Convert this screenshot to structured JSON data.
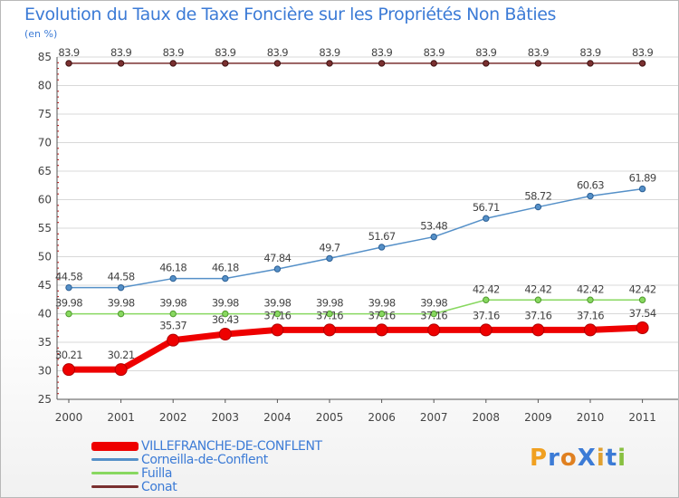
{
  "chart_data": {
    "type": "line",
    "title": "Evolution du Taux de Taxe Foncière sur les Propriétés Non Bâties",
    "ylabel": "(en %)",
    "xlabel": "",
    "ylim": [
      25,
      85
    ],
    "yticks": [
      25,
      30,
      35,
      40,
      45,
      50,
      55,
      60,
      65,
      70,
      75,
      80,
      85
    ],
    "grid": "horizontal",
    "categories": [
      "2000",
      "2001",
      "2002",
      "2003",
      "2004",
      "2005",
      "2006",
      "2007",
      "2008",
      "2009",
      "2010",
      "2011"
    ],
    "series": [
      {
        "name": "VILLEFRANCHE-DE-CONFLENT",
        "color": "#ee0000",
        "values": [
          30.21,
          30.21,
          35.37,
          36.43,
          37.16,
          37.16,
          37.16,
          37.16,
          37.16,
          37.16,
          37.16,
          37.54
        ],
        "labels": [
          "30.21",
          "30.21",
          "35.37",
          "36.43",
          "37.16",
          "37.16",
          "37.16",
          "37.16",
          "37.16",
          "37.16",
          "37.16",
          "37.54"
        ]
      },
      {
        "name": "Corneilla-de-Conflent",
        "color": "#5590c8",
        "values": [
          44.58,
          44.58,
          46.18,
          46.18,
          47.84,
          49.7,
          51.67,
          53.48,
          56.71,
          58.72,
          60.63,
          61.89
        ],
        "labels": [
          "44.58",
          "44.58",
          "46.18",
          "46.18",
          "47.84",
          "49.7",
          "51.67",
          "53.48",
          "56.71",
          "58.72",
          "60.63",
          "61.89"
        ]
      },
      {
        "name": "Fuilla",
        "color": "#88d860",
        "values": [
          39.98,
          39.98,
          39.98,
          39.98,
          39.98,
          39.98,
          39.98,
          39.98,
          42.42,
          42.42,
          42.42,
          42.42
        ],
        "labels": [
          "39.98",
          "39.98",
          "39.98",
          "39.98",
          "39.98",
          "39.98",
          "39.98",
          "39.98",
          "42.42",
          "42.42",
          "42.42",
          "42.42"
        ]
      },
      {
        "name": "Conat",
        "color": "#7a3030",
        "values": [
          83.9,
          83.9,
          83.9,
          83.9,
          83.9,
          83.9,
          83.9,
          83.9,
          83.9,
          83.9,
          83.9,
          83.9
        ],
        "labels": [
          "83.9",
          "83.9",
          "83.9",
          "83.9",
          "83.9",
          "83.9",
          "83.9",
          "83.9",
          "83.9",
          "83.9",
          "83.9",
          "83.9"
        ]
      }
    ]
  },
  "logo": {
    "text": "ProXiti"
  }
}
